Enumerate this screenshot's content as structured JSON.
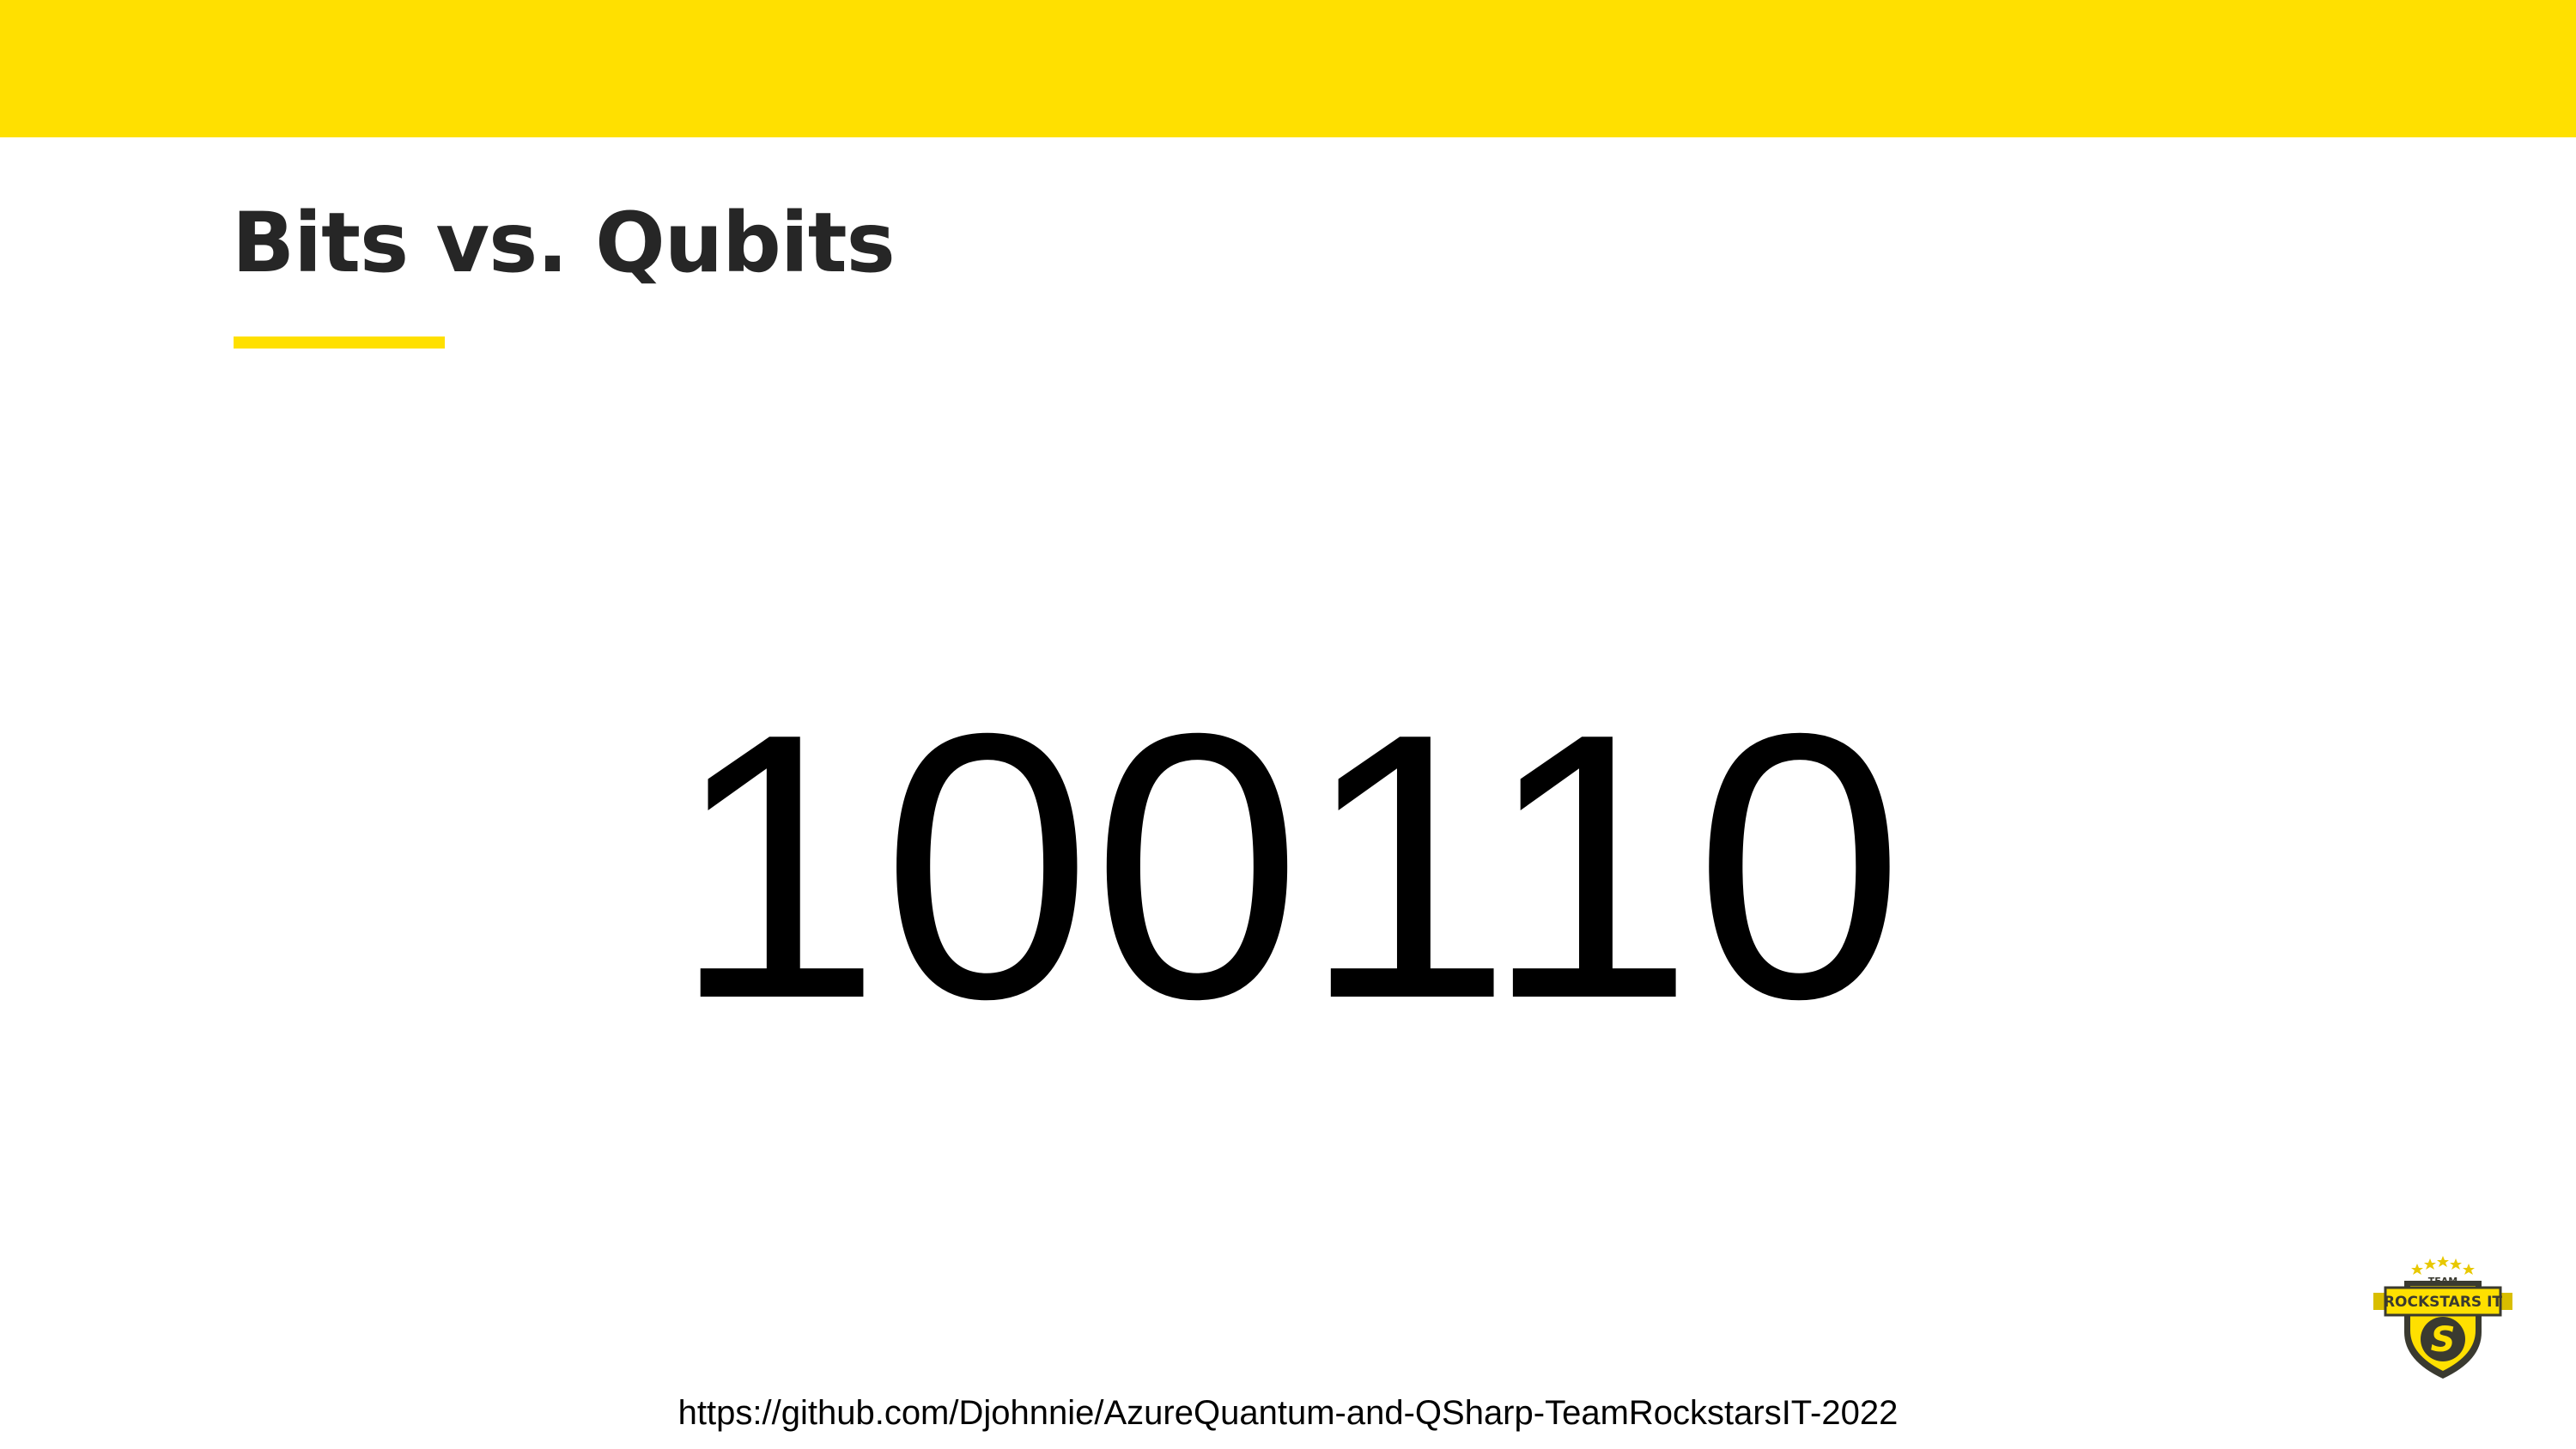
{
  "slide": {
    "title": "Bits vs. Qubits",
    "main_value": "100110",
    "footer_url": "https://github.com/Djohnnie/AzureQuantum-and-QSharp-TeamRockstarsIT-2022"
  },
  "logo": {
    "icon": "team-rockstars-it-badge-icon",
    "top_text": "TEAM",
    "banner_text": "ROCKSTARS IT",
    "emblem_letter": "S"
  },
  "colors": {
    "accent": "#FFE000",
    "title_text": "#262626",
    "body_text": "#000000",
    "badge_dark": "#3A3A30"
  }
}
